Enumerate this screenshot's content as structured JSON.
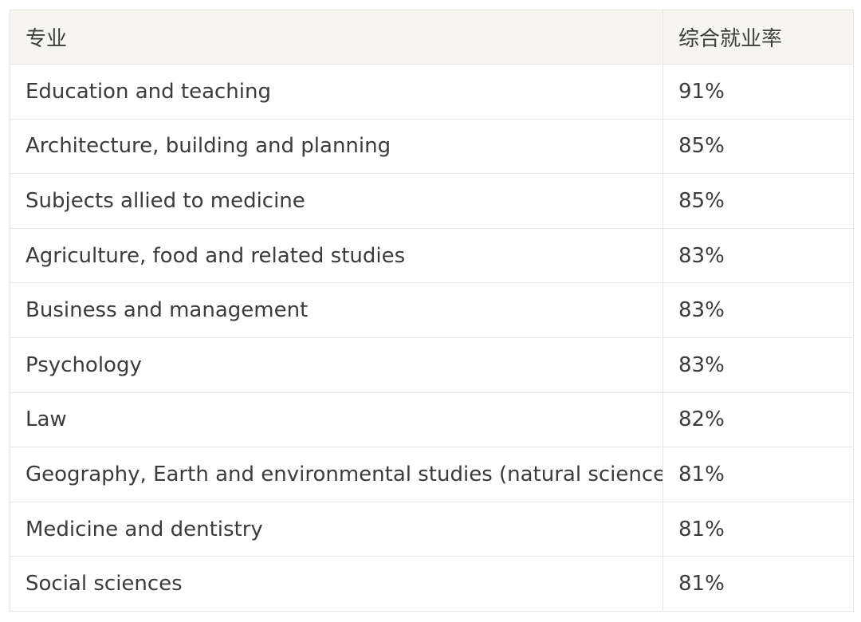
{
  "table": {
    "headers": [
      "专业",
      "综合就业率"
    ],
    "rows": [
      [
        "Education and teaching",
        "91%"
      ],
      [
        "Architecture, building and planning",
        "85%"
      ],
      [
        "Subjects allied to medicine",
        "85%"
      ],
      [
        "Agriculture, food and related studies",
        "83%"
      ],
      [
        "Business and management",
        "83%"
      ],
      [
        "Psychology",
        "83%"
      ],
      [
        "Law",
        "82%"
      ],
      [
        "Geography, Earth and environmental studies (natural sciences)",
        "81%"
      ],
      [
        "Medicine and dentistry",
        "81%"
      ],
      [
        "Social sciences",
        "81%"
      ]
    ]
  }
}
